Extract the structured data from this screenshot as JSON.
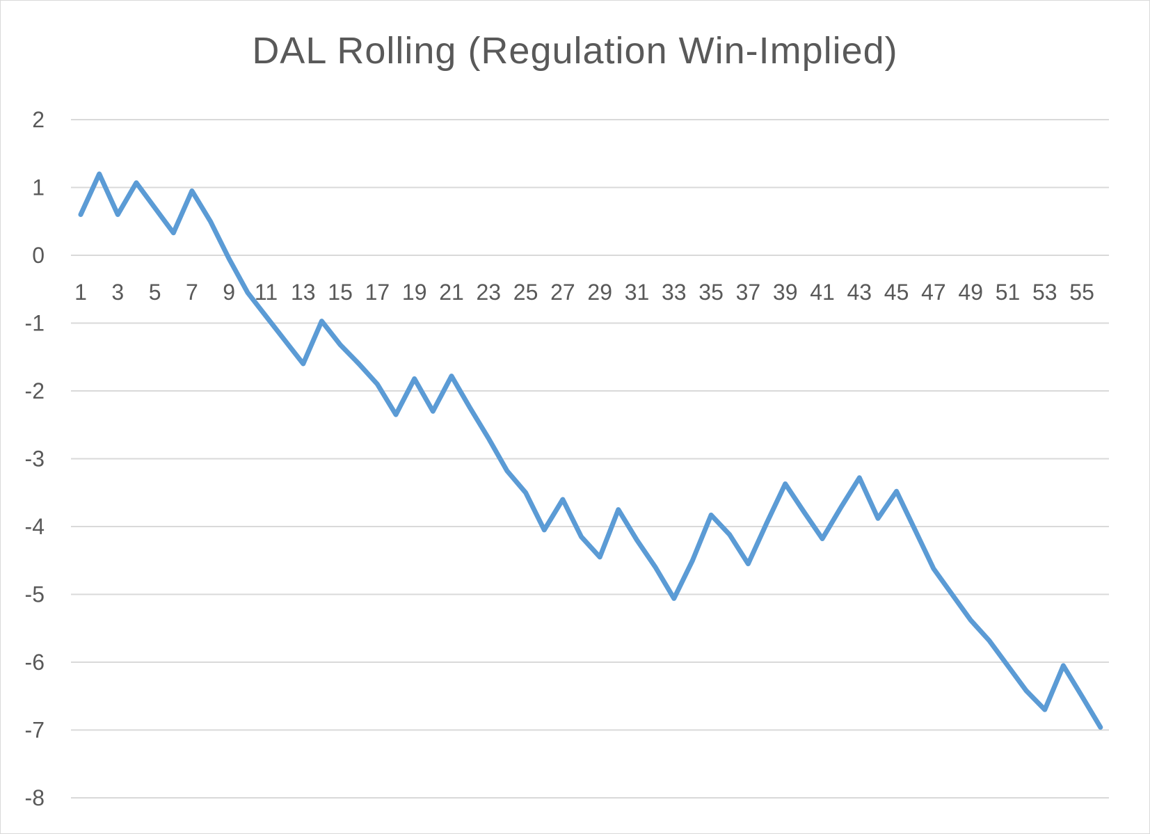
{
  "chart_data": {
    "type": "line",
    "title": "DAL Rolling (Regulation Win-Implied)",
    "xlabel": "",
    "ylabel": "",
    "ylim": [
      -8,
      2
    ],
    "y_ticks": [
      2,
      1,
      0,
      -1,
      -2,
      -3,
      -4,
      -5,
      -6,
      -7,
      -8
    ],
    "x": [
      1,
      2,
      3,
      4,
      5,
      6,
      7,
      8,
      9,
      10,
      11,
      12,
      13,
      14,
      15,
      16,
      17,
      18,
      19,
      20,
      21,
      22,
      23,
      24,
      25,
      26,
      27,
      28,
      29,
      30,
      31,
      32,
      33,
      34,
      35,
      36,
      37,
      38,
      39,
      40,
      41,
      42,
      43,
      44,
      45,
      46,
      47,
      48,
      49,
      50,
      51,
      52,
      53,
      54,
      55,
      56
    ],
    "x_tick_labels": [
      "1",
      "3",
      "5",
      "7",
      "9",
      "11",
      "13",
      "15",
      "17",
      "19",
      "21",
      "23",
      "25",
      "27",
      "29",
      "31",
      "33",
      "35",
      "37",
      "39",
      "41",
      "43",
      "45",
      "47",
      "49",
      "51",
      "53",
      "55"
    ],
    "series": [
      {
        "color": "#5b9bd5",
        "values": [
          0.6,
          1.2,
          0.6,
          1.07,
          0.7,
          0.33,
          0.95,
          0.5,
          -0.05,
          -0.55,
          -0.9,
          -1.25,
          -1.6,
          -0.97,
          -1.32,
          -1.6,
          -1.9,
          -2.35,
          -1.82,
          -2.3,
          -1.78,
          -2.25,
          -2.7,
          -3.18,
          -3.5,
          -4.05,
          -3.6,
          -4.15,
          -4.45,
          -3.75,
          -4.2,
          -4.6,
          -5.06,
          -4.5,
          -3.83,
          -4.12,
          -4.55,
          -3.95,
          -3.37,
          -3.78,
          -4.18,
          -3.72,
          -3.28,
          -3.88,
          -3.48,
          -4.05,
          -4.62,
          -5.0,
          -5.38,
          -5.68,
          -6.05,
          -6.42,
          -6.7,
          -6.05,
          -6.5,
          -6.96
        ]
      }
    ],
    "grid": true,
    "legend": "none"
  }
}
